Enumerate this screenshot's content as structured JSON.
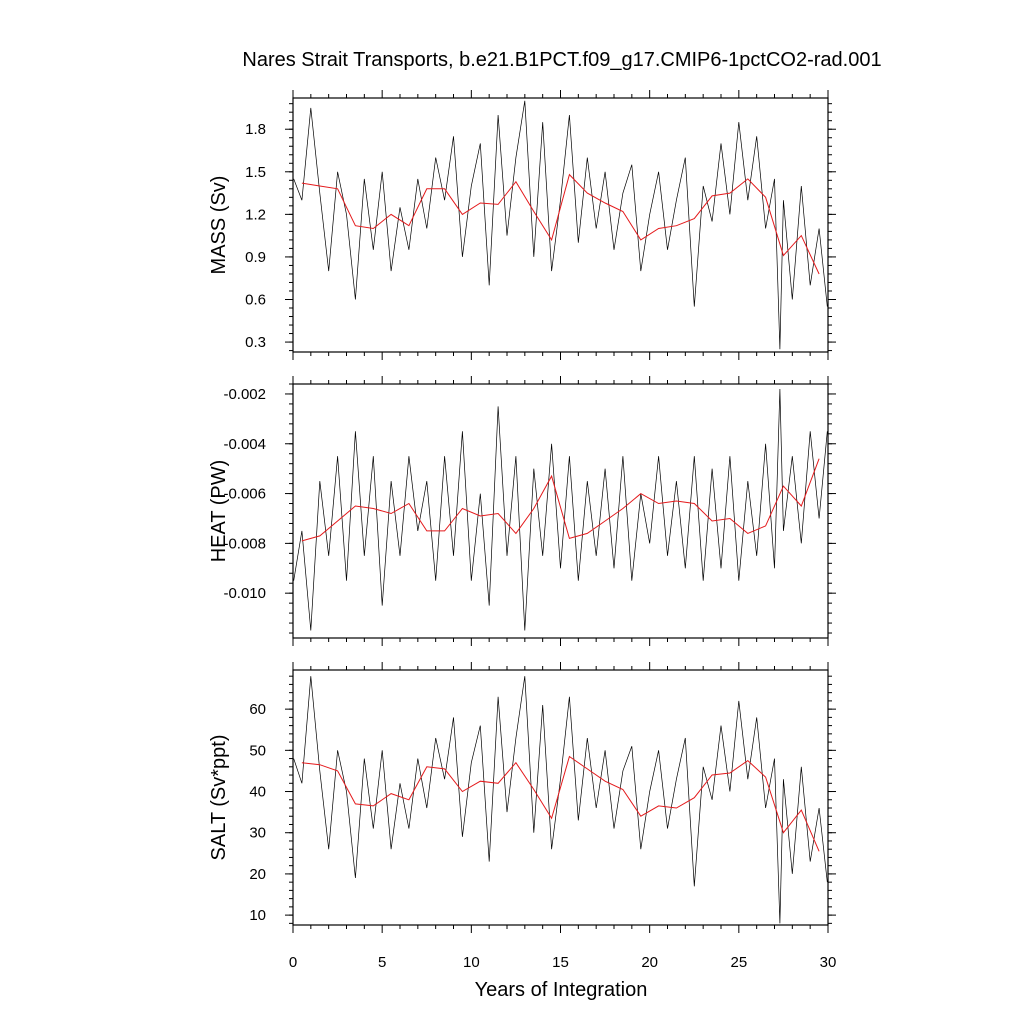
{
  "chart_data": {
    "type": "line",
    "title": "Nares Strait Transports, b.e21.B1PCT.f09_g17.CMIP6-1pctCO2-rad.001",
    "xlabel": "Years of Integration",
    "xlim": [
      0,
      30
    ],
    "xticks": [
      0,
      5,
      10,
      15,
      20,
      25,
      30
    ],
    "x_tick_labels": [
      "0",
      "5",
      "10",
      "15",
      "20",
      "25",
      "30"
    ],
    "panels": [
      {
        "ylabel": "MASS (Sv)",
        "ylim": [
          0.23,
          2.02
        ],
        "yticks": [
          0.3,
          0.6,
          0.9,
          1.2,
          1.5,
          1.8
        ],
        "y_tick_labels": [
          "0.3",
          "0.6",
          "0.9",
          "1.2",
          "1.5",
          "1.8"
        ],
        "series": [
          {
            "kind": "monthly",
            "color": "#000000",
            "x": [
              0.04,
              0.5,
              1.0,
              1.5,
              2.0,
              2.5,
              3.0,
              3.5,
              4.0,
              4.5,
              5.0,
              5.5,
              6.0,
              6.5,
              7.0,
              7.5,
              8.0,
              8.5,
              9.0,
              9.5,
              10.0,
              10.5,
              11.0,
              11.5,
              12.0,
              12.5,
              13.0,
              13.5,
              14.0,
              14.5,
              15.0,
              15.5,
              16.0,
              16.5,
              17.0,
              17.5,
              18.0,
              18.5,
              19.0,
              19.5,
              20.0,
              20.5,
              21.0,
              21.5,
              22.0,
              22.5,
              23.0,
              23.5,
              24.0,
              24.5,
              25.0,
              25.5,
              26.0,
              26.5,
              27.0,
              27.3,
              27.5,
              28.0,
              28.5,
              29.0,
              29.5,
              29.96
            ],
            "values": [
              1.45,
              1.3,
              1.95,
              1.35,
              0.8,
              1.5,
              1.2,
              0.6,
              1.45,
              0.95,
              1.5,
              0.8,
              1.25,
              0.95,
              1.45,
              1.1,
              1.6,
              1.3,
              1.75,
              0.9,
              1.4,
              1.7,
              0.7,
              1.9,
              1.05,
              1.6,
              2.0,
              0.9,
              1.85,
              0.8,
              1.3,
              1.9,
              1.0,
              1.6,
              1.1,
              1.5,
              0.95,
              1.35,
              1.55,
              0.8,
              1.2,
              1.5,
              0.95,
              1.3,
              1.6,
              0.55,
              1.4,
              1.15,
              1.7,
              1.2,
              1.85,
              1.3,
              1.75,
              1.1,
              1.45,
              0.25,
              1.3,
              0.6,
              1.4,
              0.7,
              1.1,
              0.55
            ]
          },
          {
            "kind": "annual mean",
            "color": "#e41a1c",
            "x": [
              0.5,
              1.5,
              2.5,
              3.5,
              4.5,
              5.5,
              6.5,
              7.5,
              8.5,
              9.5,
              10.5,
              11.5,
              12.5,
              13.5,
              14.5,
              15.5,
              16.5,
              17.5,
              18.5,
              19.5,
              20.5,
              21.5,
              22.5,
              23.5,
              24.5,
              25.5,
              26.5,
              27.5,
              28.5,
              29.5
            ],
            "values": [
              1.42,
              1.4,
              1.38,
              1.12,
              1.1,
              1.2,
              1.12,
              1.38,
              1.38,
              1.2,
              1.28,
              1.27,
              1.43,
              1.22,
              1.02,
              1.48,
              1.35,
              1.28,
              1.22,
              1.02,
              1.1,
              1.12,
              1.17,
              1.33,
              1.35,
              1.45,
              1.32,
              0.91,
              1.05,
              0.78
            ]
          }
        ]
      },
      {
        "ylabel": "HEAT (PW)",
        "ylim": [
          -0.0118,
          -0.0016
        ],
        "yticks": [
          -0.01,
          -0.008,
          -0.006,
          -0.004,
          -0.002
        ],
        "y_tick_labels": [
          "-0.010",
          "-0.008",
          "-0.006",
          "-0.004",
          "-0.002"
        ],
        "series": [
          {
            "kind": "monthly",
            "color": "#000000",
            "x": [
              0.04,
              0.5,
              1.0,
              1.5,
              2.0,
              2.5,
              3.0,
              3.5,
              4.0,
              4.5,
              5.0,
              5.5,
              6.0,
              6.5,
              7.0,
              7.5,
              8.0,
              8.5,
              9.0,
              9.5,
              10.0,
              10.5,
              11.0,
              11.5,
              12.0,
              12.5,
              13.0,
              13.5,
              14.0,
              14.5,
              15.0,
              15.5,
              16.0,
              16.5,
              17.0,
              17.5,
              18.0,
              18.5,
              19.0,
              19.5,
              20.0,
              20.5,
              21.0,
              21.5,
              22.0,
              22.5,
              23.0,
              23.5,
              24.0,
              24.5,
              25.0,
              25.5,
              26.0,
              26.5,
              27.0,
              27.3,
              27.5,
              28.0,
              28.5,
              29.0,
              29.5,
              29.96
            ],
            "values": [
              -0.0095,
              -0.0075,
              -0.0115,
              -0.0055,
              -0.0085,
              -0.0045,
              -0.0095,
              -0.0035,
              -0.0085,
              -0.0045,
              -0.0105,
              -0.0055,
              -0.0085,
              -0.0045,
              -0.0075,
              -0.0055,
              -0.0095,
              -0.0045,
              -0.0085,
              -0.0035,
              -0.0095,
              -0.006,
              -0.0105,
              -0.0025,
              -0.0085,
              -0.0045,
              -0.0115,
              -0.005,
              -0.0085,
              -0.004,
              -0.009,
              -0.0045,
              -0.0095,
              -0.0055,
              -0.0085,
              -0.005,
              -0.009,
              -0.0045,
              -0.0095,
              -0.006,
              -0.008,
              -0.0045,
              -0.0085,
              -0.0055,
              -0.009,
              -0.0045,
              -0.0095,
              -0.005,
              -0.009,
              -0.0045,
              -0.0095,
              -0.0055,
              -0.0085,
              -0.004,
              -0.009,
              -0.0018,
              -0.0075,
              -0.0045,
              -0.008,
              -0.0035,
              -0.007,
              -0.0035
            ]
          },
          {
            "kind": "annual mean",
            "color": "#e41a1c",
            "x": [
              0.5,
              1.5,
              2.5,
              3.5,
              4.5,
              5.5,
              6.5,
              7.5,
              8.5,
              9.5,
              10.5,
              11.5,
              12.5,
              13.5,
              14.5,
              15.5,
              16.5,
              17.5,
              18.5,
              19.5,
              20.5,
              21.5,
              22.5,
              23.5,
              24.5,
              25.5,
              26.5,
              27.5,
              28.5,
              29.5
            ],
            "values": [
              -0.0079,
              -0.0077,
              -0.0071,
              -0.0065,
              -0.0066,
              -0.0068,
              -0.0064,
              -0.0075,
              -0.0075,
              -0.0066,
              -0.0069,
              -0.0068,
              -0.0076,
              -0.0066,
              -0.0053,
              -0.0078,
              -0.0076,
              -0.0071,
              -0.0066,
              -0.006,
              -0.0064,
              -0.0063,
              -0.0064,
              -0.0071,
              -0.007,
              -0.0076,
              -0.0073,
              -0.0057,
              -0.0065,
              -0.0046
            ]
          }
        ]
      },
      {
        "ylabel": "SALT (Sv*ppt)",
        "ylim": [
          7.6,
          69.5
        ],
        "yticks": [
          10,
          20,
          30,
          40,
          50,
          60
        ],
        "y_tick_labels": [
          "10",
          "20",
          "30",
          "40",
          "50",
          "60"
        ],
        "series": [
          {
            "kind": "monthly",
            "color": "#000000",
            "x": [
              0.04,
              0.5,
              1.0,
              1.5,
              2.0,
              2.5,
              3.0,
              3.5,
              4.0,
              4.5,
              5.0,
              5.5,
              6.0,
              6.5,
              7.0,
              7.5,
              8.0,
              8.5,
              9.0,
              9.5,
              10.0,
              10.5,
              11.0,
              11.5,
              12.0,
              12.5,
              13.0,
              13.5,
              14.0,
              14.5,
              15.0,
              15.5,
              16.0,
              16.5,
              17.0,
              17.5,
              18.0,
              18.5,
              19.0,
              19.5,
              20.0,
              20.5,
              21.0,
              21.5,
              22.0,
              22.5,
              23.0,
              23.5,
              24.0,
              24.5,
              25.0,
              25.5,
              26.0,
              26.5,
              27.0,
              27.3,
              27.5,
              28.0,
              28.5,
              29.0,
              29.5,
              29.96
            ],
            "values": [
              48,
              42,
              68,
              45,
              26,
              50,
              40,
              19,
              48,
              31,
              50,
              26,
              42,
              31,
              48,
              36,
              53,
              43,
              58,
              29,
              47,
              56,
              23,
              63,
              35,
              53,
              68,
              30,
              61,
              26,
              43,
              63,
              33,
              53,
              36,
              50,
              31,
              45,
              51,
              26,
              40,
              50,
              31,
              43,
              53,
              17,
              46,
              38,
              56,
              40,
              62,
              43,
              58,
              36,
              48,
              8,
              43,
              20,
              46,
              23,
              36,
              18
            ]
          },
          {
            "kind": "annual mean",
            "color": "#e41a1c",
            "x": [
              0.5,
              1.5,
              2.5,
              3.5,
              4.5,
              5.5,
              6.5,
              7.5,
              8.5,
              9.5,
              10.5,
              11.5,
              12.5,
              13.5,
              14.5,
              15.5,
              16.5,
              17.5,
              18.5,
              19.5,
              20.5,
              21.5,
              22.5,
              23.5,
              24.5,
              25.5,
              26.5,
              27.5,
              28.5,
              29.5
            ],
            "values": [
              47,
              46.5,
              45,
              37,
              36.5,
              39.5,
              38,
              46,
              45.5,
              40,
              42.5,
              42,
              47,
              40.5,
              33.5,
              48.5,
              45.5,
              42.5,
              40.5,
              34,
              36.5,
              36,
              38.5,
              44,
              44.5,
              47.5,
              43.5,
              30,
              35.5,
              25.5
            ]
          }
        ]
      }
    ]
  }
}
